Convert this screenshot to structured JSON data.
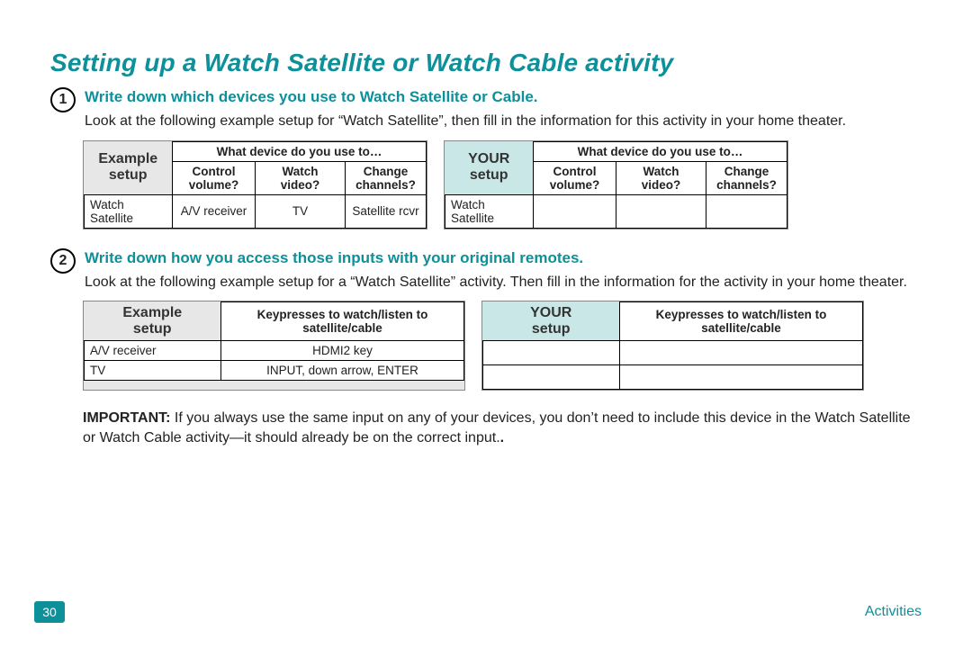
{
  "colors": {
    "accent": "#0d9099",
    "example_bg": "#e7e7e7",
    "your_bg": "#c9e7e6",
    "text": "#222222",
    "border": "#000000"
  },
  "title": "Setting up a Watch Satellite or Watch Cable activity",
  "step1": {
    "num": "1",
    "heading": "Write down which devices you use to Watch Satellite or Cable.",
    "body": "Look at the following example setup for “Watch Satellite”, then fill in the information for this activity in your home theater."
  },
  "step2": {
    "num": "2",
    "heading": "Write down how you access those inputs with your original remotes.",
    "body": "Look at the following example setup for a “Watch Satellite” activity. Then fill in the information for the activity in your home theater."
  },
  "labels": {
    "example_line1": "Example",
    "example_line2": "setup",
    "your_line1": "YOUR",
    "your_line2": "setup"
  },
  "table1": {
    "super_header": "What device do you use to…",
    "cols": [
      "Control volume?",
      "Watch video?",
      "Change channels?"
    ],
    "row_label": "Watch Satellite",
    "example_row": [
      "A/V receiver",
      "TV",
      "Satellite rcvr"
    ],
    "your_row": [
      "",
      "",
      ""
    ]
  },
  "table2": {
    "header": "Keypresses to watch/listen to satellite/cable",
    "example_rows": [
      [
        "A/V receiver",
        "HDMI2 key"
      ],
      [
        "TV",
        "INPUT, down arrow, ENTER"
      ]
    ],
    "your_rows": [
      [
        "",
        ""
      ],
      [
        "",
        ""
      ]
    ]
  },
  "important": {
    "label": "IMPORTANT:",
    "text": " If you always use the same input on any of your devices, you don’t need to include this device in the Watch Satellite or Watch Cable activity—it should already be on the correct input."
  },
  "footer": {
    "page": "30",
    "section": "Activities"
  }
}
